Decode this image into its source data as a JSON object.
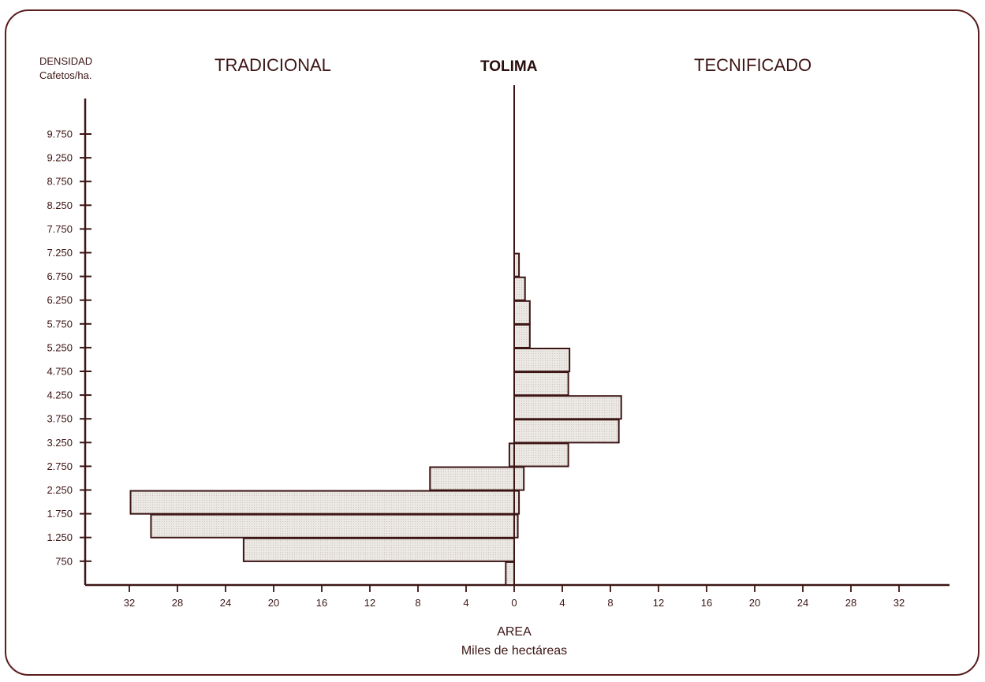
{
  "chart_data": {
    "type": "bar",
    "orientation": "horizontal-bidirectional",
    "title": "TOLIMA",
    "left_heading": "TRADICIONAL",
    "right_heading": "TECNIFICADO",
    "ylabel_line1": "DENSIDAD",
    "ylabel_line2": "Cafetos/ha.",
    "xlabel_line1": "AREA",
    "xlabel_line2": "Miles de hectáreas",
    "y_ticks": [
      "9.750",
      "9.250",
      "8.750",
      "8.250",
      "7.750",
      "7.250",
      "6.750",
      "6.250",
      "5.750",
      "5.250",
      "4.750",
      "4.250",
      "3.750",
      "3.250",
      "2.750",
      "2.250",
      "1.750",
      "1.250",
      "750"
    ],
    "x_ticks_left": [
      "32",
      "28",
      "24",
      "20",
      "16",
      "12",
      "8",
      "4"
    ],
    "x_ticks_right": [
      "0",
      "4",
      "8",
      "12",
      "16",
      "20",
      "24",
      "28",
      "32"
    ],
    "xlim": [
      -36,
      36
    ],
    "bins": [
      "<750",
      "750-1.250",
      "1.250-1.750",
      "1.750-2.250",
      "2.250-2.750",
      "2.750-3.250",
      "3.250-3.750",
      "3.750-4.250",
      "4.250-4.750",
      "4.750-5.250",
      "5.250-5.750",
      "5.750-6.250",
      "6.250-6.750",
      "6.750-7.250"
    ],
    "series": [
      {
        "name": "TRADICIONAL",
        "values": [
          0.7,
          22.5,
          30.2,
          31.9,
          7.0,
          0.4,
          0,
          0,
          0,
          0,
          0,
          0,
          0,
          0
        ]
      },
      {
        "name": "TECNIFICADO",
        "values": [
          0,
          0,
          0.3,
          0.4,
          0.8,
          4.5,
          8.7,
          8.9,
          4.5,
          4.6,
          1.3,
          1.3,
          0.9,
          0.4
        ]
      }
    ],
    "bar_fill": "#e9e6e2",
    "bar_stroke": "#3d1515",
    "axis_color": "#3d1515"
  }
}
